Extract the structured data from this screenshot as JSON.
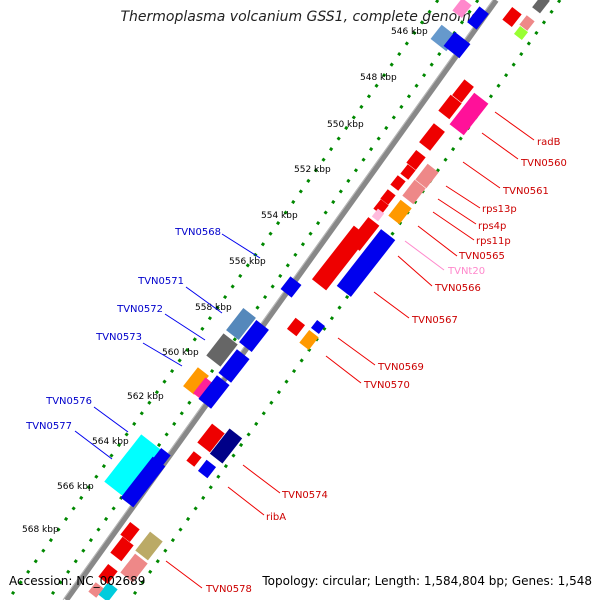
{
  "title": "Thermoplasma volcanium GSS1, complete genome",
  "footer": {
    "accession": "Accession: NC_002689",
    "topology": "Topology: circular; Length: 1,584,804 bp; Genes: 1,548"
  },
  "scale_labels": [
    "546 kbp",
    "548 kbp",
    "550 kbp",
    "552 kbp",
    "554 kbp",
    "556 kbp",
    "558 kbp",
    "560 kbp",
    "562 kbp",
    "564 kbp",
    "566 kbp",
    "568 kbp"
  ],
  "minus_labels": [
    "TVN0568",
    "TVN0571",
    "TVN0572",
    "TVN0573",
    "TVN0576",
    "TVN0577"
  ],
  "plus_labels": [
    "radB",
    "TVN0560",
    "TVN0561",
    "rps13p",
    "rps4p",
    "rps11p",
    "TVN0565",
    "TVNt20",
    "TVN0566",
    "TVN0567",
    "TVN0569",
    "TVN0570",
    "TVN0574",
    "ribA",
    "TVN0578"
  ],
  "colors": {
    "minus_label": "#0000cc",
    "plus_label": "#cc0000",
    "trna_label": "#ff88cc",
    "backbone": "#888888",
    "dots": "#008800"
  }
}
